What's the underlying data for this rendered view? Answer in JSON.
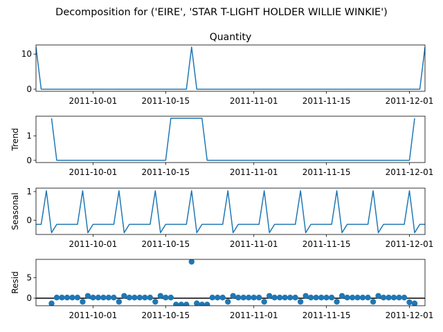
{
  "figure": {
    "suptitle": "Decomposition for ('EIRE', 'STAR T-LIGHT HOLDER WILLIE WINKIE')"
  },
  "chart_data": [
    {
      "type": "line",
      "title": "Quantity",
      "ylabel": "",
      "xlim": [
        "2011-09-20",
        "2011-12-04"
      ],
      "ylim": [
        -0.6,
        12.6
      ],
      "yticks": [
        0,
        10
      ],
      "xticks": [
        "2011-10-01",
        "2011-10-15",
        "2011-11-01",
        "2011-11-15",
        "2011-12-01"
      ],
      "color": "#1f77b4",
      "x": [
        "2011-09-20",
        "2011-09-21",
        "2011-10-19",
        "2011-10-20",
        "2011-10-21",
        "2011-12-03",
        "2011-12-04"
      ],
      "y": [
        12,
        0,
        0,
        12,
        0,
        0,
        12
      ]
    },
    {
      "type": "line",
      "title": "",
      "ylabel": "Trend",
      "xlim": [
        "2011-09-20",
        "2011-12-04"
      ],
      "ylim": [
        -0.09,
        1.8
      ],
      "yticks": [
        0,
        1
      ],
      "xticks": [
        "2011-10-01",
        "2011-10-15",
        "2011-11-01",
        "2011-11-15",
        "2011-12-01"
      ],
      "color": "#1f77b4",
      "x": [
        "2011-09-23",
        "2011-09-24",
        "2011-10-15",
        "2011-10-16",
        "2011-10-22",
        "2011-10-23",
        "2011-12-01",
        "2011-12-02"
      ],
      "y": [
        1.714,
        0,
        0,
        1.714,
        1.714,
        0,
        0,
        1.714
      ]
    },
    {
      "type": "line",
      "title": "",
      "ylabel": "Seasonal",
      "xlim": [
        "2011-09-20",
        "2011-12-04"
      ],
      "ylim": [
        -0.5,
        1.12
      ],
      "yticks": [
        0,
        1
      ],
      "xticks": [
        "2011-10-01",
        "2011-10-15",
        "2011-11-01",
        "2011-11-15",
        "2011-12-01"
      ],
      "color": "#1f77b4",
      "weekly_pattern": [
        1.028,
        -0.438,
        -0.147,
        -0.147,
        -0.147,
        -0.147,
        -0.147
      ],
      "pattern_anchor": "2011-09-22",
      "x_start": "2011-09-20",
      "x_end": "2011-12-04"
    },
    {
      "type": "scatter",
      "title": "",
      "ylabel": "Resid",
      "xlim": [
        "2011-09-20",
        "2011-12-04"
      ],
      "ylim": [
        -1.85,
        9.5
      ],
      "yticks": [
        0,
        5
      ],
      "xticks": [
        "2011-10-01",
        "2011-10-15",
        "2011-11-01",
        "2011-11-15",
        "2011-12-01"
      ],
      "hline": 0,
      "color": "#1f77b4",
      "x": [
        "2011-09-23",
        "2011-09-24",
        "2011-09-25",
        "2011-09-26",
        "2011-09-27",
        "2011-09-28",
        "2011-09-29",
        "2011-09-30",
        "2011-10-01",
        "2011-10-02",
        "2011-10-03",
        "2011-10-04",
        "2011-10-05",
        "2011-10-06",
        "2011-10-07",
        "2011-10-08",
        "2011-10-09",
        "2011-10-10",
        "2011-10-11",
        "2011-10-12",
        "2011-10-13",
        "2011-10-14",
        "2011-10-15",
        "2011-10-16",
        "2011-10-17",
        "2011-10-18",
        "2011-10-19",
        "2011-10-20",
        "2011-10-21",
        "2011-10-22",
        "2011-10-23",
        "2011-10-24",
        "2011-10-25",
        "2011-10-26",
        "2011-10-27",
        "2011-10-28",
        "2011-10-29",
        "2011-10-30",
        "2011-10-31",
        "2011-11-01",
        "2011-11-02",
        "2011-11-03",
        "2011-11-04",
        "2011-11-05",
        "2011-11-06",
        "2011-11-07",
        "2011-11-08",
        "2011-11-09",
        "2011-11-10",
        "2011-11-11",
        "2011-11-12",
        "2011-11-13",
        "2011-11-14",
        "2011-11-15",
        "2011-11-16",
        "2011-11-17",
        "2011-11-18",
        "2011-11-19",
        "2011-11-20",
        "2011-11-21",
        "2011-11-22",
        "2011-11-23",
        "2011-11-24",
        "2011-11-25",
        "2011-11-26",
        "2011-11-27",
        "2011-11-28",
        "2011-11-29",
        "2011-11-30",
        "2011-12-01",
        "2011-12-02"
      ],
      "y": [
        -1.29,
        0.15,
        0.15,
        0.15,
        0.15,
        0.15,
        -0.88,
        0.56,
        0.15,
        0.15,
        0.15,
        0.15,
        0.15,
        -0.88,
        0.56,
        0.15,
        0.15,
        0.15,
        0.15,
        0.15,
        -0.88,
        0.56,
        0.15,
        0.15,
        -1.57,
        -1.57,
        -1.57,
        8.92,
        -1.28,
        -1.57,
        -1.57,
        0.15,
        0.15,
        0.15,
        -0.88,
        0.56,
        0.15,
        0.15,
        0.15,
        0.15,
        0.15,
        -0.88,
        0.56,
        0.15,
        0.15,
        0.15,
        0.15,
        0.15,
        -0.88,
        0.56,
        0.15,
        0.15,
        0.15,
        0.15,
        0.15,
        -0.88,
        0.56,
        0.15,
        0.15,
        0.15,
        0.15,
        0.15,
        -0.88,
        0.56,
        0.15,
        0.15,
        0.15,
        0.15,
        0.15,
        -1.01,
        -1.29
      ]
    }
  ]
}
